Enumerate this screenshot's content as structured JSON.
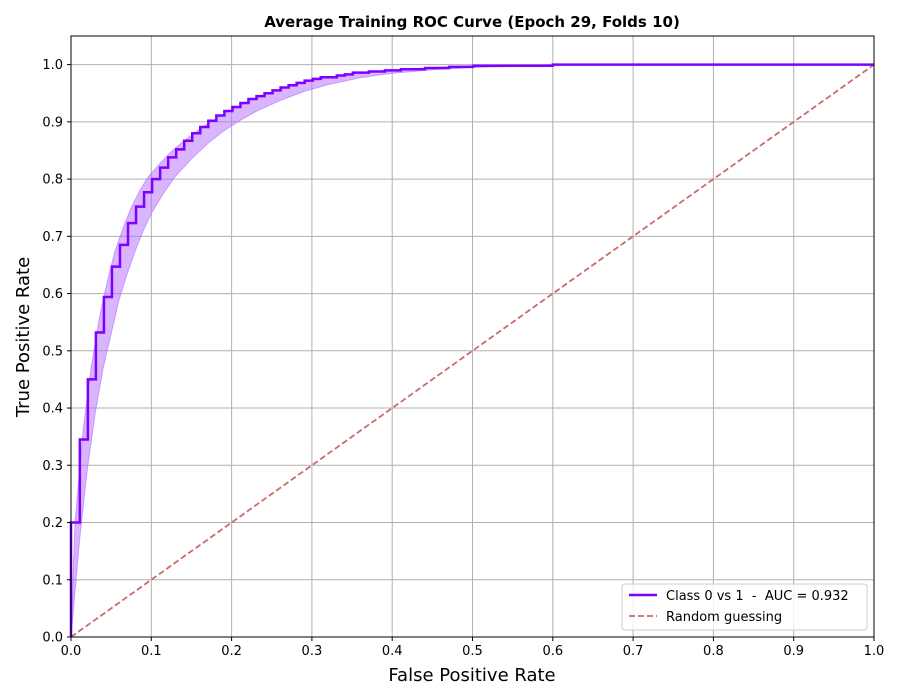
{
  "chart_data": {
    "type": "line",
    "title": "Average Training ROC Curve (Epoch 29, Folds 10)",
    "xlabel": "False Positive Rate",
    "ylabel": "True Positive Rate",
    "xlim": [
      0.0,
      1.0
    ],
    "ylim": [
      0.0,
      1.05
    ],
    "xticks": [
      "0.0",
      "0.1",
      "0.2",
      "0.3",
      "0.4",
      "0.5",
      "0.6",
      "0.7",
      "0.8",
      "0.9",
      "1.0"
    ],
    "yticks": [
      "0.0",
      "0.1",
      "0.2",
      "0.3",
      "0.4",
      "0.5",
      "0.6",
      "0.7",
      "0.8",
      "0.9",
      "1.0"
    ],
    "grid": true,
    "legend_position": "bottom-right",
    "series": [
      {
        "name": "Class 0 vs 1  -  AUC = 0.932",
        "style": "step",
        "color": "#7f00ff",
        "points": [
          [
            0.0,
            0.0
          ],
          [
            0.0,
            0.2
          ],
          [
            0.011,
            0.2
          ],
          [
            0.011,
            0.345
          ],
          [
            0.021,
            0.345
          ],
          [
            0.021,
            0.45
          ],
          [
            0.031,
            0.45
          ],
          [
            0.031,
            0.532
          ],
          [
            0.041,
            0.532
          ],
          [
            0.041,
            0.594
          ],
          [
            0.051,
            0.594
          ],
          [
            0.051,
            0.647
          ],
          [
            0.061,
            0.647
          ],
          [
            0.061,
            0.685
          ],
          [
            0.071,
            0.685
          ],
          [
            0.071,
            0.723
          ],
          [
            0.081,
            0.723
          ],
          [
            0.081,
            0.752
          ],
          [
            0.091,
            0.752
          ],
          [
            0.091,
            0.777
          ],
          [
            0.101,
            0.777
          ],
          [
            0.101,
            0.8
          ],
          [
            0.111,
            0.8
          ],
          [
            0.111,
            0.82
          ],
          [
            0.121,
            0.82
          ],
          [
            0.121,
            0.838
          ],
          [
            0.131,
            0.838
          ],
          [
            0.131,
            0.852
          ],
          [
            0.141,
            0.852
          ],
          [
            0.141,
            0.867
          ],
          [
            0.151,
            0.867
          ],
          [
            0.151,
            0.88
          ],
          [
            0.161,
            0.88
          ],
          [
            0.161,
            0.891
          ],
          [
            0.171,
            0.891
          ],
          [
            0.171,
            0.902
          ],
          [
            0.181,
            0.902
          ],
          [
            0.181,
            0.911
          ],
          [
            0.191,
            0.911
          ],
          [
            0.191,
            0.919
          ],
          [
            0.201,
            0.919
          ],
          [
            0.201,
            0.926
          ],
          [
            0.211,
            0.926
          ],
          [
            0.211,
            0.933
          ],
          [
            0.221,
            0.933
          ],
          [
            0.221,
            0.94
          ],
          [
            0.231,
            0.94
          ],
          [
            0.231,
            0.945
          ],
          [
            0.241,
            0.945
          ],
          [
            0.241,
            0.95
          ],
          [
            0.251,
            0.95
          ],
          [
            0.251,
            0.955
          ],
          [
            0.261,
            0.955
          ],
          [
            0.261,
            0.96
          ],
          [
            0.271,
            0.96
          ],
          [
            0.271,
            0.964
          ],
          [
            0.281,
            0.964
          ],
          [
            0.281,
            0.968
          ],
          [
            0.291,
            0.968
          ],
          [
            0.291,
            0.972
          ],
          [
            0.301,
            0.972
          ],
          [
            0.301,
            0.975
          ],
          [
            0.311,
            0.975
          ],
          [
            0.311,
            0.978
          ],
          [
            0.331,
            0.978
          ],
          [
            0.331,
            0.981
          ],
          [
            0.341,
            0.981
          ],
          [
            0.341,
            0.983
          ],
          [
            0.351,
            0.983
          ],
          [
            0.351,
            0.986
          ],
          [
            0.371,
            0.986
          ],
          [
            0.371,
            0.988
          ],
          [
            0.391,
            0.988
          ],
          [
            0.391,
            0.99
          ],
          [
            0.411,
            0.99
          ],
          [
            0.411,
            0.992
          ],
          [
            0.441,
            0.992
          ],
          [
            0.441,
            0.994
          ],
          [
            0.471,
            0.994
          ],
          [
            0.471,
            0.996
          ],
          [
            0.501,
            0.996
          ],
          [
            0.501,
            0.998
          ],
          [
            0.6,
            0.998
          ],
          [
            0.6,
            1.0
          ],
          [
            1.0,
            1.0
          ]
        ],
        "band_upper": [
          [
            0.0,
            0.0
          ],
          [
            0.005,
            0.2
          ],
          [
            0.015,
            0.36
          ],
          [
            0.025,
            0.47
          ],
          [
            0.035,
            0.555
          ],
          [
            0.045,
            0.62
          ],
          [
            0.055,
            0.675
          ],
          [
            0.065,
            0.715
          ],
          [
            0.075,
            0.75
          ],
          [
            0.085,
            0.778
          ],
          [
            0.095,
            0.802
          ],
          [
            0.11,
            0.826
          ],
          [
            0.125,
            0.848
          ],
          [
            0.14,
            0.866
          ],
          [
            0.16,
            0.887
          ],
          [
            0.18,
            0.905
          ],
          [
            0.2,
            0.921
          ],
          [
            0.22,
            0.935
          ],
          [
            0.25,
            0.952
          ],
          [
            0.28,
            0.965
          ],
          [
            0.31,
            0.975
          ],
          [
            0.35,
            0.984
          ],
          [
            0.4,
            0.991
          ],
          [
            0.45,
            0.995
          ],
          [
            0.5,
            0.998
          ],
          [
            0.6,
            1.0
          ],
          [
            1.0,
            1.0
          ]
        ],
        "band_lower": [
          [
            0.0,
            0.0
          ],
          [
            0.01,
            0.16
          ],
          [
            0.02,
            0.29
          ],
          [
            0.03,
            0.39
          ],
          [
            0.04,
            0.47
          ],
          [
            0.05,
            0.53
          ],
          [
            0.06,
            0.59
          ],
          [
            0.07,
            0.635
          ],
          [
            0.08,
            0.675
          ],
          [
            0.09,
            0.71
          ],
          [
            0.1,
            0.74
          ],
          [
            0.115,
            0.775
          ],
          [
            0.13,
            0.805
          ],
          [
            0.15,
            0.835
          ],
          [
            0.17,
            0.862
          ],
          [
            0.19,
            0.884
          ],
          [
            0.21,
            0.902
          ],
          [
            0.23,
            0.918
          ],
          [
            0.26,
            0.937
          ],
          [
            0.29,
            0.953
          ],
          [
            0.32,
            0.965
          ],
          [
            0.36,
            0.977
          ],
          [
            0.4,
            0.985
          ],
          [
            0.45,
            0.991
          ],
          [
            0.5,
            0.995
          ],
          [
            0.6,
            0.999
          ],
          [
            1.0,
            1.0
          ]
        ]
      },
      {
        "name": "Random guessing",
        "style": "dashed",
        "color": "#cd6a6a",
        "points": [
          [
            0.0,
            0.0
          ],
          [
            1.0,
            1.0
          ]
        ]
      }
    ]
  },
  "colors": {
    "curve": "#7f00ff",
    "band": "#b36cff",
    "random": "#cd6a6a",
    "grid": "#b0b0b0"
  }
}
